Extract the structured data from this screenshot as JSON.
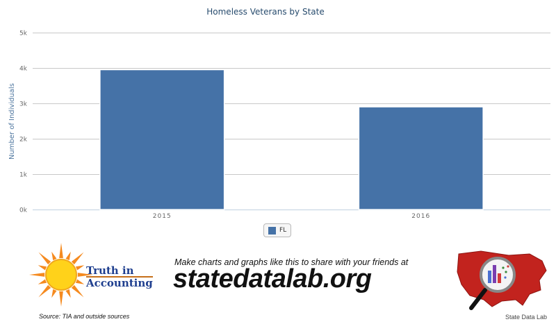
{
  "chart_data": {
    "type": "bar",
    "title": "Homeless Veterans by State",
    "ylabel": "Number of Individuals",
    "xlabel": "",
    "categories": [
      "2015",
      "2016"
    ],
    "series": [
      {
        "name": "FL",
        "values": [
          3952,
          2902
        ],
        "color": "#4572a7"
      }
    ],
    "ylim": [
      0,
      5000
    ],
    "yticks": [
      0,
      1000,
      2000,
      3000,
      4000,
      5000
    ],
    "ytick_labels": [
      "0k",
      "1k",
      "2k",
      "3k",
      "4k",
      "5k"
    ],
    "grid": true,
    "legend": "bottom-center"
  },
  "footer": {
    "tia_line1": "Truth in",
    "tia_line2": "Accounting",
    "source": "Source: TIA and outside sources",
    "tagline": "Make charts and graphs like this to share with your friends at",
    "site": "statedatalab.org",
    "sdl_caption": "State Data Lab"
  },
  "icons": {
    "sun": "sun-icon",
    "us_map": "us-map-icon",
    "magnifier": "magnifying-glass-icon"
  }
}
